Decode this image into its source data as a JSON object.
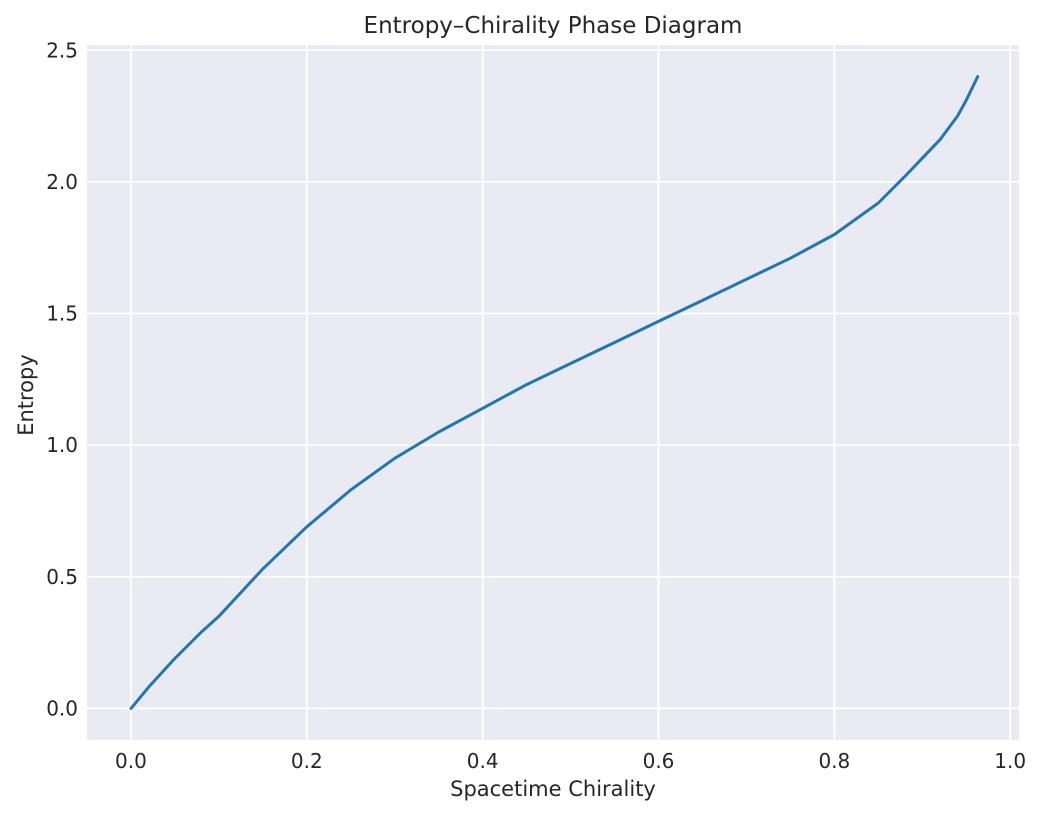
{
  "chart_data": {
    "type": "line",
    "title": "Entropy–Chirality Phase Diagram",
    "xlabel": "Spacetime Chirality",
    "ylabel": "Entropy",
    "xlim": [
      -0.05,
      1.01
    ],
    "ylim": [
      -0.12,
      2.52
    ],
    "grid": true,
    "x_ticks": [
      0.0,
      0.2,
      0.4,
      0.6,
      0.8,
      1.0
    ],
    "x_tick_labels": [
      "0.0",
      "0.2",
      "0.4",
      "0.6",
      "0.8",
      "1.0"
    ],
    "y_ticks": [
      0.0,
      0.5,
      1.0,
      1.5,
      2.0,
      2.5
    ],
    "y_tick_labels": [
      "0.0",
      "0.5",
      "1.0",
      "1.5",
      "2.0",
      "2.5"
    ],
    "series": [
      {
        "color": "#1f77b4",
        "x": [
          0.0,
          0.02,
          0.05,
          0.08,
          0.1,
          0.15,
          0.2,
          0.25,
          0.3,
          0.35,
          0.4,
          0.45,
          0.5,
          0.55,
          0.6,
          0.65,
          0.7,
          0.75,
          0.8,
          0.85,
          0.88,
          0.9,
          0.92,
          0.94,
          0.95,
          0.963
        ],
        "y": [
          0.0,
          0.08,
          0.19,
          0.29,
          0.35,
          0.53,
          0.69,
          0.83,
          0.95,
          1.05,
          1.14,
          1.23,
          1.31,
          1.39,
          1.47,
          1.55,
          1.63,
          1.71,
          1.8,
          1.92,
          2.02,
          2.09,
          2.16,
          2.25,
          2.31,
          2.4
        ]
      }
    ]
  }
}
